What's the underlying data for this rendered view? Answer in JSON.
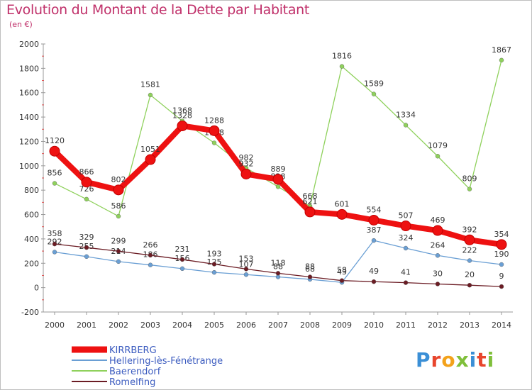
{
  "title": "Evolution du Montant de la Dette par Habitant",
  "subtitle": "(en €)",
  "logo": {
    "letters": [
      "P",
      "r",
      "o",
      "x",
      "i",
      "t",
      "i"
    ],
    "colors": [
      "#3b8fd6",
      "#e8462d",
      "#f3a21b",
      "#7fbf3a",
      "#3b8fd6",
      "#e8462d",
      "#7fbf3a"
    ]
  },
  "chart_data": {
    "type": "line",
    "x": [
      2000,
      2001,
      2002,
      2003,
      2004,
      2005,
      2006,
      2007,
      2008,
      2009,
      2010,
      2011,
      2012,
      2013,
      2014
    ],
    "ylim": [
      -200,
      2000
    ],
    "yticks": [
      -200,
      0,
      200,
      400,
      600,
      800,
      1000,
      1200,
      1400,
      1600,
      1800,
      2000
    ],
    "grid": false,
    "legend_position": "bottom-left",
    "series": [
      {
        "name": "KIRRBERG",
        "color": "#ee1111",
        "values": [
          1120,
          866,
          802,
          1051,
          1328,
          1288,
          932,
          889,
          621,
          601,
          554,
          507,
          469,
          392,
          354
        ],
        "labels": [
          "1120",
          "866",
          "802",
          "1051",
          "1328",
          "1288",
          "932",
          "889",
          "621",
          "601",
          "554",
          "507",
          "469",
          "392",
          "354"
        ]
      },
      {
        "name": "Hellering-lès-Fénétrange",
        "color": "#6a9fd4",
        "values": [
          292,
          255,
          214,
          186,
          156,
          125,
          107,
          88,
          68,
          43,
          387,
          324,
          264,
          222,
          190
        ],
        "labels": [
          "292",
          "255",
          "214",
          "186",
          "156",
          "125",
          "107",
          "88",
          "68",
          "43",
          "387",
          "324",
          "264",
          "222",
          "190"
        ]
      },
      {
        "name": "Baerendorf",
        "color": "#8fd15c",
        "values": [
          856,
          726,
          586,
          1581,
          1368,
          1188,
          982,
          828,
          668,
          null,
          null,
          null,
          null,
          null,
          null
        ],
        "labels": [
          "856",
          "726",
          "586",
          "1581",
          "1368",
          "1188",
          "982",
          "828",
          "668",
          "",
          "",
          "",
          "",
          "",
          ""
        ]
      },
      {
        "name": "Baerendorf",
        "color": "#8fd15c",
        "values": [
          null,
          null,
          null,
          null,
          null,
          null,
          null,
          null,
          668,
          1816,
          1589,
          1334,
          1079,
          809,
          1867
        ],
        "labels": [
          "",
          "",
          "",
          "",
          "",
          "",
          "",
          "",
          "",
          "1816",
          "1589",
          "1334",
          "1079",
          "809",
          "1867"
        ]
      },
      {
        "name": "Romelfing",
        "color": "#6b1c24",
        "values": [
          358,
          329,
          299,
          266,
          231,
          193,
          153,
          118,
          88,
          58,
          49,
          41,
          30,
          20,
          9
        ],
        "labels": [
          "358",
          "329",
          "299",
          "266",
          "231",
          "193",
          "153",
          "118",
          "88",
          "58",
          "49",
          "41",
          "30",
          "20",
          "9"
        ]
      }
    ],
    "legend": [
      {
        "name": "KIRRBERG",
        "color": "#ee1111"
      },
      {
        "name": "Hellering-lès-Fénétrange",
        "color": "#6a9fd4"
      },
      {
        "name": "Baerendorf",
        "color": "#8fd15c"
      },
      {
        "name": "Romelfing",
        "color": "#6b1c24"
      }
    ]
  }
}
